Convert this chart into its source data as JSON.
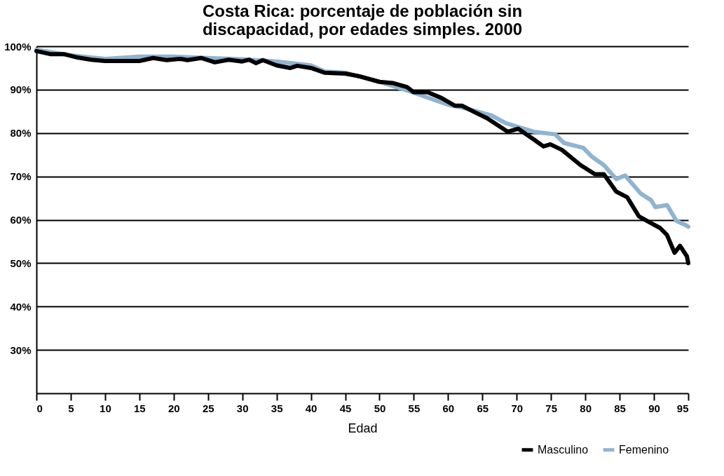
{
  "chart_data": {
    "type": "line",
    "title": [
      "Costa Rica: porcentaje de población sin",
      "discapacidad, por edades simples. 2000"
    ],
    "xlabel": "Edad",
    "xlim": [
      0,
      95
    ],
    "xticks": [
      0,
      5,
      10,
      15,
      20,
      25,
      30,
      35,
      40,
      45,
      50,
      55,
      60,
      65,
      70,
      75,
      80,
      85,
      90,
      95
    ],
    "ylim": [
      20,
      100
    ],
    "yticks": [
      {
        "value": 30,
        "label": "30%"
      },
      {
        "value": 40,
        "label": "40%"
      },
      {
        "value": 50,
        "label": "50%"
      },
      {
        "value": 60,
        "label": "60%"
      },
      {
        "value": 70,
        "label": "70%"
      },
      {
        "value": 80,
        "label": "80%"
      },
      {
        "value": 90,
        "label": "90%"
      },
      {
        "value": 100,
        "label": "100%"
      }
    ],
    "grid": "y",
    "legend": "bottom right",
    "marker": "none",
    "line_style": "solid",
    "series": [
      {
        "name": "Masculino",
        "color": "#000000",
        "x": [
          0,
          2,
          4,
          6,
          8,
          10,
          15,
          17,
          19,
          21,
          22,
          24,
          26,
          28,
          30,
          31,
          32,
          33,
          35,
          37,
          38,
          40,
          42,
          45,
          47,
          50,
          52,
          54,
          55,
          57,
          59,
          61,
          62,
          64,
          65.7,
          68.7,
          70.2,
          72.5,
          73.9,
          74.9,
          76.6,
          79.3,
          81.4,
          82.7,
          84.5,
          86.1,
          87.8,
          89.6,
          90.9,
          91.9,
          93,
          93.8,
          94.8,
          95
        ],
        "values": [
          98.9,
          98.2,
          98.2,
          97.4,
          96.9,
          96.6,
          96.6,
          97.3,
          96.8,
          97.1,
          96.8,
          97.3,
          96.3,
          96.9,
          96.5,
          96.9,
          96.1,
          96.8,
          95.6,
          95.0,
          95.5,
          95.0,
          93.9,
          93.7,
          93.1,
          91.8,
          91.5,
          90.6,
          89.4,
          89.4,
          88.1,
          86.3,
          86.3,
          84.7,
          83.4,
          80.3,
          81.0,
          78.5,
          76.9,
          77.4,
          76.1,
          72.6,
          70.5,
          70.5,
          66.5,
          65.2,
          60.8,
          59.2,
          58.1,
          56.5,
          52.4,
          54.0,
          51.6,
          50.0
        ]
      },
      {
        "name": "Femenino",
        "color": "#8fb4d0",
        "x": [
          0,
          5,
          10,
          15,
          20,
          25,
          30,
          35,
          40,
          42,
          45,
          50,
          55,
          60,
          62.3,
          66.4,
          68.4,
          72.5,
          75.6,
          76.9,
          79.7,
          81,
          82.7,
          84.5,
          85.8,
          88.1,
          89.6,
          90.2,
          91.9,
          93.3,
          94.7,
          95
        ],
        "values": [
          99.2,
          97.9,
          97.1,
          97.6,
          97.6,
          97.3,
          97.0,
          96.5,
          95.6,
          94.2,
          93.9,
          91.8,
          89.3,
          86.5,
          85.8,
          84.0,
          82.3,
          80.3,
          79.7,
          77.7,
          76.6,
          74.5,
          72.6,
          69.4,
          70.2,
          66.0,
          64.5,
          62.9,
          63.4,
          59.7,
          58.7,
          58.4
        ]
      }
    ]
  }
}
